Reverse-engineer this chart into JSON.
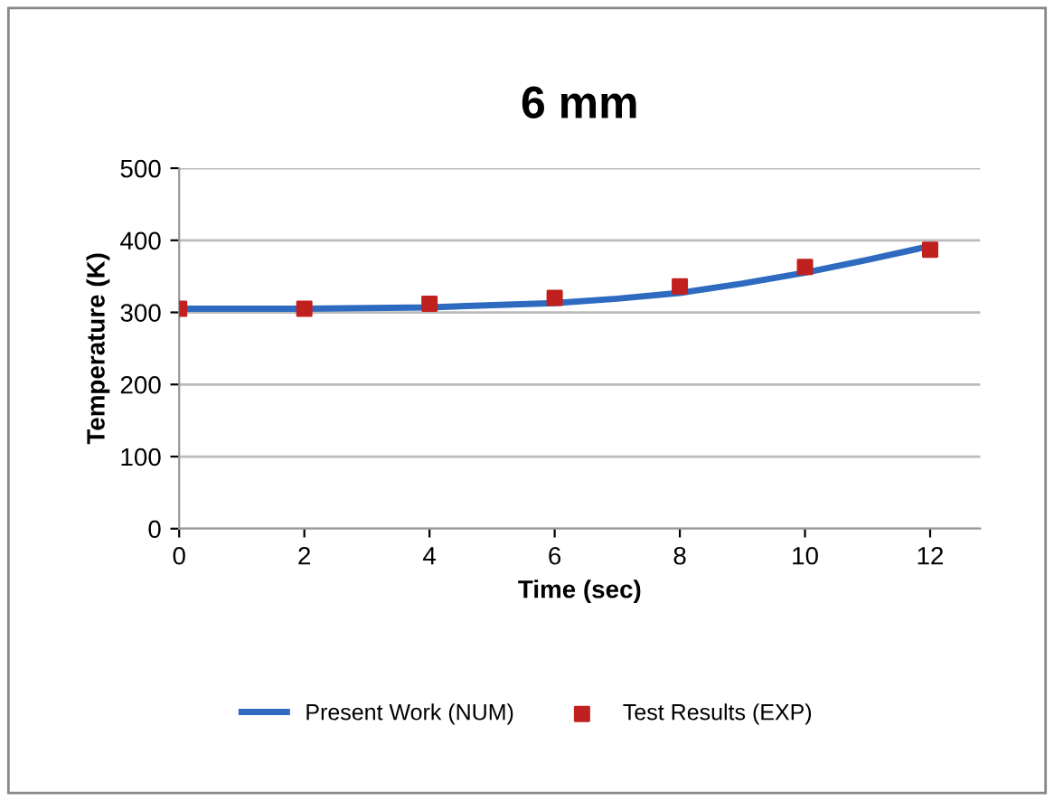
{
  "chart_data": {
    "type": "line",
    "title": "6 mm",
    "xlabel": "Time (sec)",
    "ylabel": "Temperature (K)",
    "series": [
      {
        "name": "Present Work (NUM)",
        "color": "#2e6bc0",
        "marker": "none",
        "x": [
          0,
          2,
          4,
          6,
          7,
          8,
          9,
          10,
          11,
          12
        ],
        "values": [
          305,
          305,
          307,
          313,
          319,
          327,
          340,
          355,
          373,
          392
        ]
      },
      {
        "name": "Test Results (EXP)",
        "color": "#c0201e",
        "type": "scatter",
        "marker": "square",
        "x": [
          0,
          2,
          4,
          6,
          8,
          10,
          12
        ],
        "values": [
          305,
          305,
          312,
          320,
          336,
          363,
          387
        ]
      }
    ],
    "xlim": [
      0,
      12.8
    ],
    "xticks": [
      0,
      2,
      4,
      6,
      8,
      10,
      12
    ],
    "ylim": [
      0,
      500
    ],
    "yticks": [
      0,
      100,
      200,
      300,
      400,
      500
    ],
    "grid": "y",
    "legend": "bottom"
  }
}
